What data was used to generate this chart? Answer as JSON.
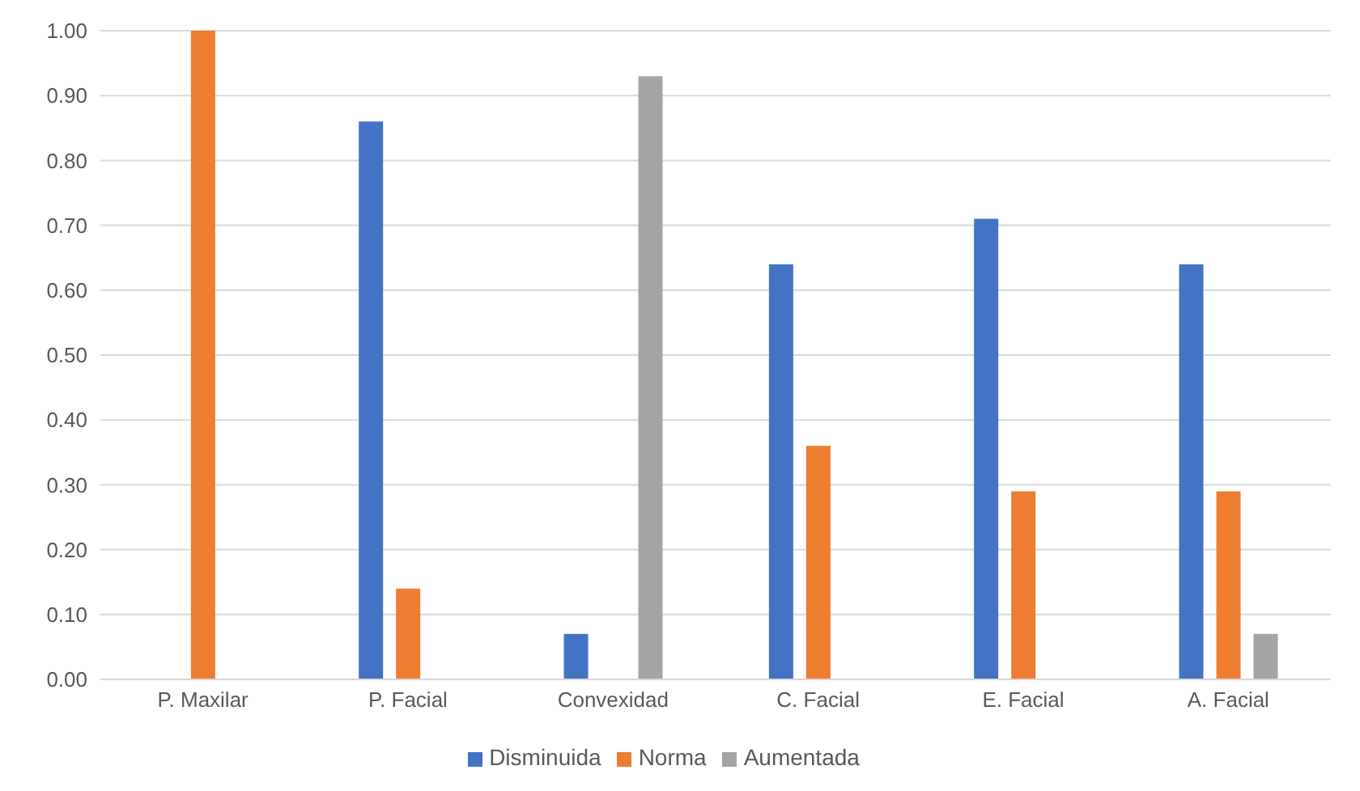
{
  "chart_data": {
    "type": "bar",
    "categories": [
      "P. Maxilar",
      "P. Facial",
      "Convexidad",
      "C. Facial",
      "E. Facial",
      "A. Facial"
    ],
    "series": [
      {
        "name": "Disminuida",
        "color": "#4472c4",
        "values": [
          0,
          0.86,
          0.07,
          0.64,
          0.71,
          0.64
        ]
      },
      {
        "name": "Norma",
        "color": "#ed7d31",
        "values": [
          1.0,
          0.14,
          0,
          0.36,
          0.29,
          0.29
        ]
      },
      {
        "name": "Aumentada",
        "color": "#a5a5a5",
        "values": [
          0,
          0,
          0.93,
          0,
          0,
          0.07
        ]
      }
    ],
    "ylim": [
      0,
      1
    ],
    "yticks": [
      {
        "value": 0,
        "label": "0.00"
      },
      {
        "value": 0.1,
        "label": "0.10"
      },
      {
        "value": 0.2,
        "label": "0.20"
      },
      {
        "value": 0.3,
        "label": "0.30"
      },
      {
        "value": 0.4,
        "label": "0.40"
      },
      {
        "value": 0.5,
        "label": "0.50"
      },
      {
        "value": 0.6,
        "label": "0.60"
      },
      {
        "value": 0.7,
        "label": "0.70"
      },
      {
        "value": 0.8,
        "label": "0.80"
      },
      {
        "value": 0.9,
        "label": "0.90"
      },
      {
        "value": 1,
        "label": "1.00"
      }
    ],
    "grid": "y",
    "legend": "bottom"
  }
}
